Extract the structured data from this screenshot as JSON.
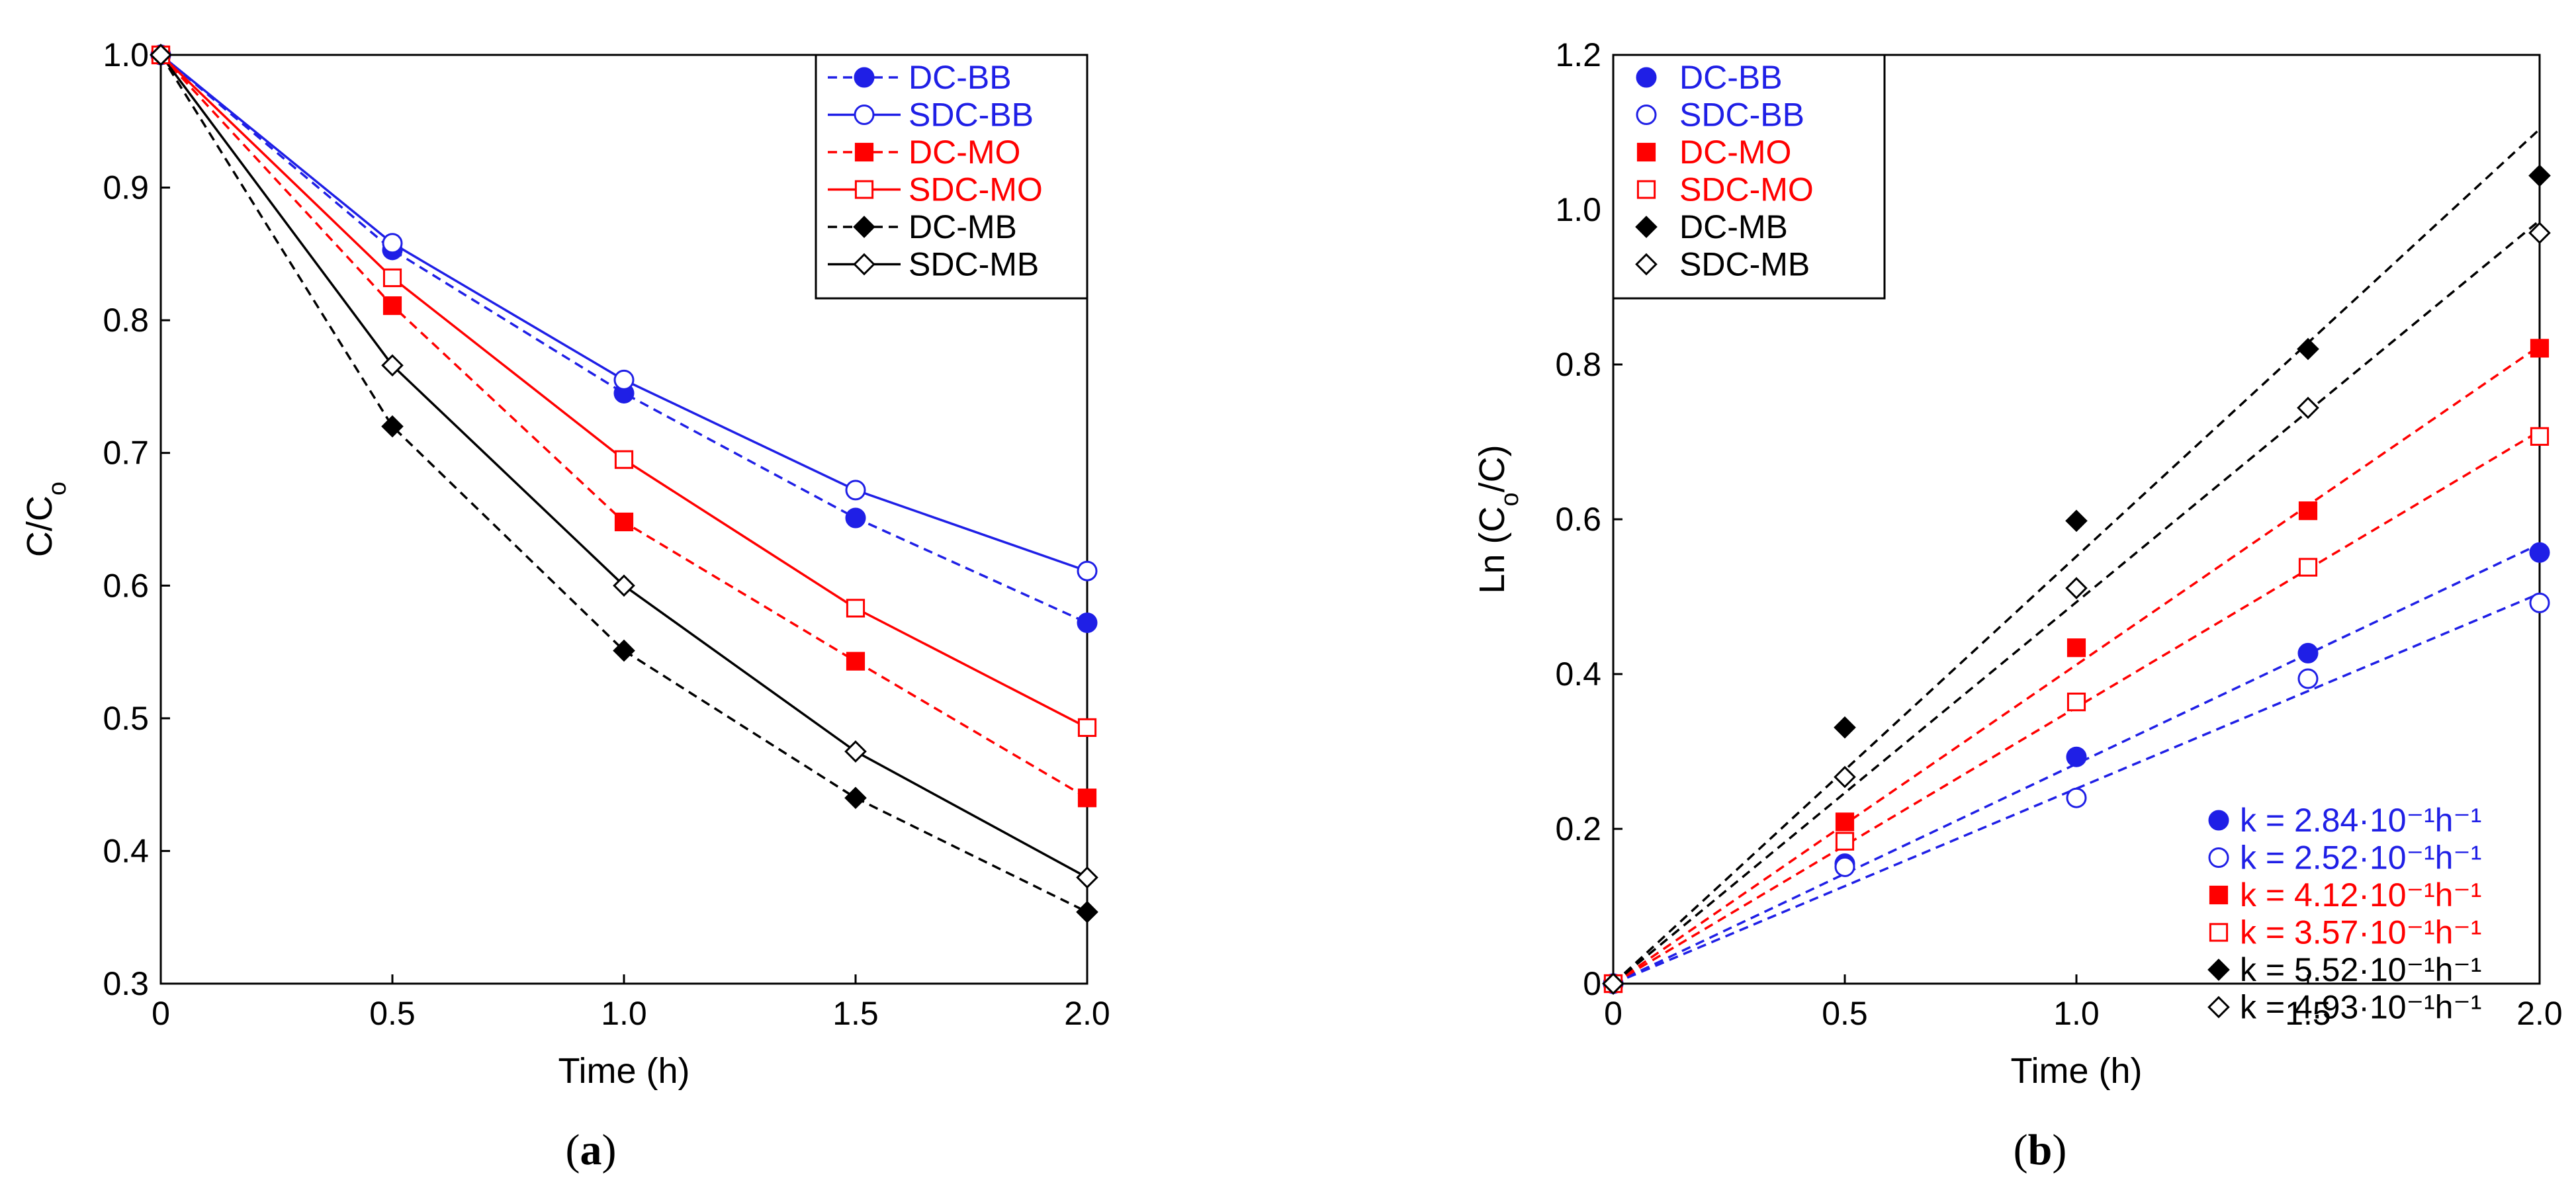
{
  "colors": {
    "blue": "#1f1fe6",
    "red": "#ff0000",
    "black": "#000000"
  },
  "chart_data": [
    {
      "id": "a",
      "type": "line",
      "panel_label": {
        "open": "(",
        "letter": "a",
        "close": ")"
      },
      "xlabel": "Time (h)",
      "ylabel": {
        "main": "C/C",
        "sub": "o"
      },
      "xlim": [
        0,
        2.0
      ],
      "ylim": [
        0.3,
        1.0
      ],
      "xticks": [
        0,
        0.5,
        1.0,
        1.5,
        2.0
      ],
      "xtick_labels": [
        "0",
        "0.5",
        "1.0",
        "1.5",
        "2.0"
      ],
      "yticks": [
        0.3,
        0.4,
        0.5,
        0.6,
        0.7,
        0.8,
        0.9,
        1.0
      ],
      "ytick_labels": [
        "0.3",
        "0.4",
        "0.5",
        "0.6",
        "0.7",
        "0.8",
        "0.9",
        "1.0"
      ],
      "grid": false,
      "legend_position": "top-right",
      "x": [
        0,
        0.5,
        1.0,
        1.5,
        2.0
      ],
      "series": [
        {
          "name": "DC-BB",
          "color": "blue",
          "marker": "circle",
          "filled": true,
          "line": "dashed",
          "values": [
            1.0,
            0.853,
            0.745,
            0.651,
            0.572
          ]
        },
        {
          "name": "SDC-BB",
          "color": "blue",
          "marker": "circle",
          "filled": false,
          "line": "solid",
          "values": [
            1.0,
            0.858,
            0.755,
            0.672,
            0.611
          ]
        },
        {
          "name": "DC-MO",
          "color": "red",
          "marker": "square",
          "filled": true,
          "line": "dashed",
          "values": [
            1.0,
            0.811,
            0.648,
            0.543,
            0.44
          ]
        },
        {
          "name": "SDC-MO",
          "color": "red",
          "marker": "square",
          "filled": false,
          "line": "solid",
          "values": [
            1.0,
            0.832,
            0.695,
            0.583,
            0.493
          ]
        },
        {
          "name": "DC-MB",
          "color": "black",
          "marker": "diamond",
          "filled": true,
          "line": "dashed",
          "values": [
            1.0,
            0.72,
            0.551,
            0.44,
            0.354
          ]
        },
        {
          "name": "SDC-MB",
          "color": "black",
          "marker": "diamond",
          "filled": false,
          "line": "solid",
          "values": [
            1.0,
            0.766,
            0.6,
            0.475,
            0.38
          ]
        }
      ]
    },
    {
      "id": "b",
      "type": "scatter",
      "panel_label": {
        "open": "(",
        "letter": "b",
        "close": ")"
      },
      "xlabel": "Time (h)",
      "ylabel": {
        "main": "Ln (C",
        "sub": "o",
        "tail": "/C)"
      },
      "xlim": [
        0,
        2.0
      ],
      "ylim": [
        0,
        1.2
      ],
      "xticks": [
        0,
        0.5,
        1.0,
        1.5,
        2.0
      ],
      "xtick_labels": [
        "0",
        "0.5",
        "1.0",
        "1.5",
        "2.0"
      ],
      "yticks": [
        0,
        0.2,
        0.4,
        0.6,
        0.8,
        1.0,
        1.2
      ],
      "ytick_labels": [
        "0",
        "0.2",
        "0.4",
        "0.6",
        "0.8",
        "1.0",
        "1.2"
      ],
      "grid": false,
      "legend_position": "top-left",
      "annotation_position": "bottom-right",
      "x": [
        0,
        0.5,
        1.0,
        1.5,
        2.0
      ],
      "series": [
        {
          "name": "DC-BB",
          "color": "blue",
          "marker": "circle",
          "filled": true,
          "values": [
            0,
            0.155,
            0.293,
            0.427,
            0.557
          ],
          "fit_slope": 0.284,
          "fit_label": "k = 2.84·10⁻¹h⁻¹"
        },
        {
          "name": "SDC-BB",
          "color": "blue",
          "marker": "circle",
          "filled": false,
          "values": [
            0,
            0.151,
            0.24,
            0.394,
            0.492
          ],
          "fit_slope": 0.252,
          "fit_label": "k = 2.52·10⁻¹h⁻¹"
        },
        {
          "name": "DC-MO",
          "color": "red",
          "marker": "square",
          "filled": true,
          "values": [
            0,
            0.209,
            0.434,
            0.611,
            0.821
          ],
          "fit_slope": 0.412,
          "fit_label": "k = 4.12·10⁻¹h⁻¹"
        },
        {
          "name": "SDC-MO",
          "color": "red",
          "marker": "square",
          "filled": false,
          "values": [
            0,
            0.184,
            0.364,
            0.538,
            0.707
          ],
          "fit_slope": 0.357,
          "fit_label": "k = 3.57·10⁻¹h⁻¹"
        },
        {
          "name": "DC-MB",
          "color": "black",
          "marker": "diamond",
          "filled": true,
          "values": [
            0,
            0.331,
            0.598,
            0.82,
            1.044
          ],
          "fit_slope": 0.552,
          "fit_label": "k = 5.52·10⁻¹h⁻¹"
        },
        {
          "name": "SDC-MB",
          "color": "black",
          "marker": "diamond",
          "filled": false,
          "values": [
            0,
            0.267,
            0.511,
            0.744,
            0.97
          ],
          "fit_slope": 0.493,
          "fit_label": "k = 4.93·10⁻¹h⁻¹"
        }
      ]
    }
  ]
}
